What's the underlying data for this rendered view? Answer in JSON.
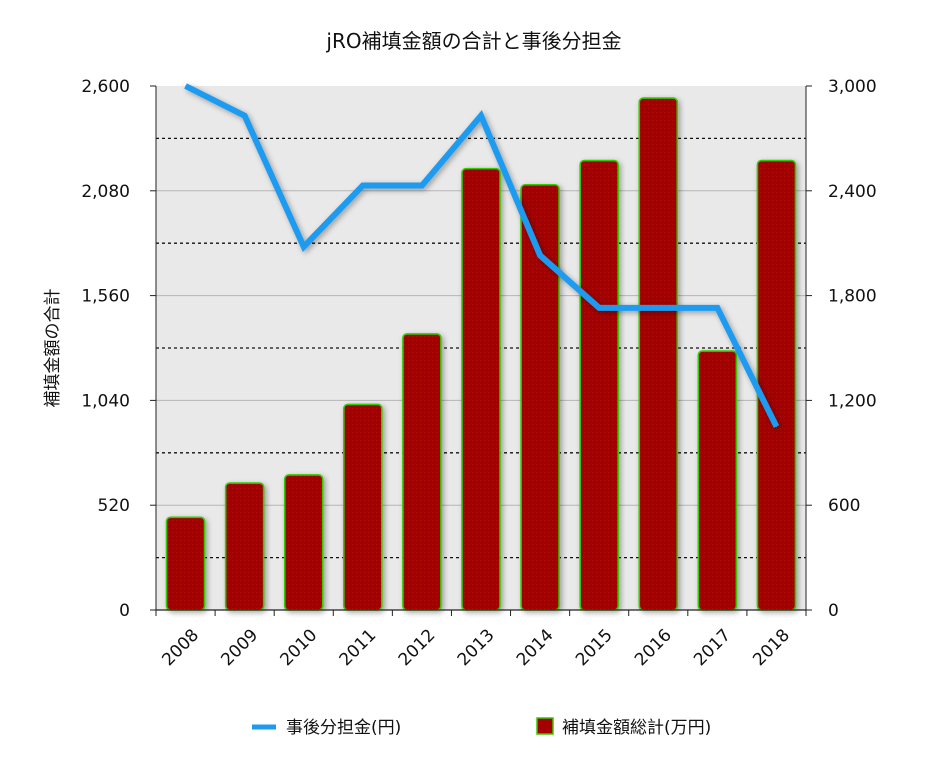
{
  "chart_data": {
    "type": "bar+line",
    "title": "jRO補填金額の合計と事後分担金",
    "ylabel_left": "補填金額の合計",
    "ylabel_right": "",
    "xlabel": "",
    "categories": [
      "2008",
      "2009",
      "2010",
      "2011",
      "2012",
      "2013",
      "2014",
      "2015",
      "2016",
      "2017",
      "2018"
    ],
    "left_axis": {
      "min": 0,
      "max": 2600,
      "ticks": [
        0,
        520,
        1040,
        1560,
        2080,
        2600
      ],
      "tick_labels": [
        "0",
        "520",
        "1,040",
        "1,560",
        "2,080",
        "2,600"
      ]
    },
    "right_axis": {
      "min": 0,
      "max": 3000,
      "ticks": [
        0,
        600,
        1200,
        1800,
        2400,
        3000
      ],
      "tick_labels": [
        "0",
        "600",
        "1,200",
        "1,800",
        "2,400",
        "3,000"
      ]
    },
    "series": [
      {
        "name": "補填金額総計(万円)",
        "kind": "bar",
        "axis": "left",
        "color": "#a50000",
        "edge_color": "#33cc00",
        "values": [
          460,
          630,
          670,
          1020,
          1370,
          2190,
          2110,
          2230,
          2540,
          1285,
          2230
        ]
      },
      {
        "name": "事後分担金(円)",
        "kind": "line",
        "axis": "right",
        "color": "#1e9bf0",
        "values": [
          3000,
          2830,
          2080,
          2430,
          2430,
          2830,
          2030,
          1730,
          1730,
          1730,
          1050
        ]
      }
    ],
    "grid": true,
    "legend_position": "bottom"
  }
}
